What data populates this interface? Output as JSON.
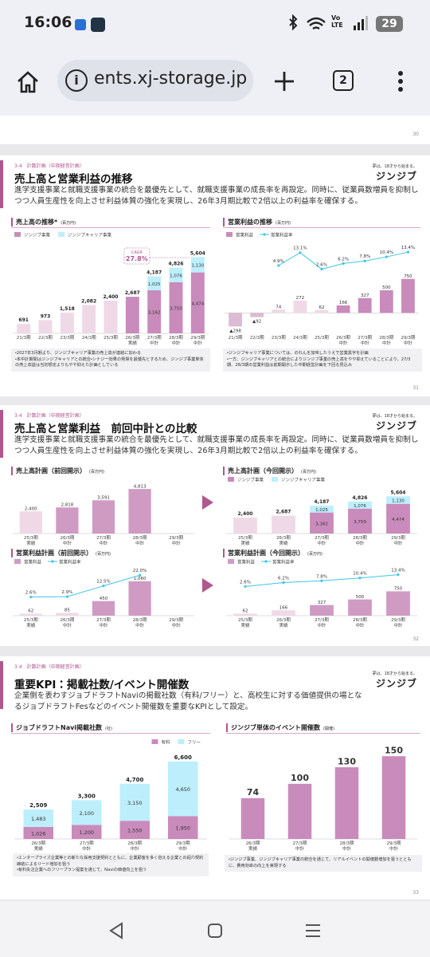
{
  "status_bar": {
    "time": "16:06",
    "battery": "29",
    "network": "Vo LTE"
  },
  "browser": {
    "url": "ents.xj-storage.jp",
    "tabs": "2"
  },
  "slides": [
    {
      "page": "30"
    },
    {
      "tag": "3-4　計数計画（中期経営計画）",
      "title": "売上高と営業利益の推移",
      "body": "進学支援事業と就職支援事業の統合を最優先として、就職支援事業の成長率を再設定。同時に、従業員数増員を抑制しつつ人員生産性を向上させ利益体質の強化を実現し、26年3月期比較で2倍以上の利益率を確保する。",
      "logo_tagline": "夢は、18才から始まる。",
      "logo": "ジンジブ",
      "notes_left": [
        "・2027年3月期より、ジンジブキャリア事業の売上高が連結に加わる",
        "・本中計期間はジンジブキャリアとの統合・シナジー効果の発揮を最優先とするため、ジンジブ事業単体の売上収益は当初想定よりもやや抑えた計画としている"
      ],
      "notes_right": [
        "・ジンジブキャリア事業については、のれんを加味したうえで営業黒字を計画",
        "・一方、ジンジブキャリアとの統合によりジンジブ事業の売上高をやや抑えていることにより、27/3期、28/3期の営業利益は前期開示した中期経営計画を下回る見込み"
      ],
      "page": "31"
    },
    {
      "tag": "3-4　計数計画（中期経営計画）",
      "title": "売上高と営業利益　前回中計との比較",
      "body": "進学支援事業と就職支援事業の統合を最優先として、就職支援事業の成長率を再設定。同時に、従業員数増員を抑制しつつ人員生産性を向上させ利益体質の強化を実現し、26年3月期比較で2倍以上の利益率を確保する。",
      "logo_tagline": "夢は、18才から始まる。",
      "logo": "ジンジブ",
      "page": "32"
    },
    {
      "tag": "3-4　計数計画（中期経営計画）",
      "title": "重要KPI：掲載社数/イベント開催数",
      "body": "企業側を表わすジョブドラフトNaviの掲載社数（有料/フリー）と、高校生に対する価値提供の場となるジョブドラフトFesなどのイベント開催数を重要なKPIとして設定。",
      "logo_tagline": "夢は、18才から始まる。",
      "logo": "ジンジブ",
      "notes_left": [
        "・エンタープライズ企業等との新たな採用支援契約とともに、企業顧客を多く抱える企業との紹介契約締結によるリード増加を狙う",
        "・有料失注企業へのフリープラン提案を通じて、Naviの価値向上を狙う"
      ],
      "notes_right": [
        "・ジンジブ事業、ジンジブキャリア事業の統合を通じて、リアルイベントの開催数増加を狙うとともに、費用効率の向上を実現する"
      ],
      "page": "33"
    }
  ],
  "chart_data": [
    {
      "type": "bar",
      "title": "売上高の推移*",
      "unit": "(百万円)",
      "legend": "top-left",
      "categories": [
        "21/3期",
        "22/3期",
        "23/3期",
        "24/3期",
        "25/3期",
        "26/3期 実績",
        "27/3期 中計",
        "28/3期 中計",
        "29/3期 中計"
      ],
      "series": [
        {
          "name": "ジンジブ事業",
          "color": "#c98bbb",
          "colors": [
            "#efd9e7",
            "#efd9e7",
            "#efd9e7",
            "#efd9e7",
            "#efd9e7",
            "#c98bbb",
            "#c98bbb",
            "#c98bbb",
            "#c98bbb"
          ],
          "values": [
            691,
            973,
            1518,
            2082,
            2400,
            2687,
            3162,
            3750,
            4474
          ],
          "value_labels": [
            null,
            null,
            null,
            null,
            null,
            null,
            "3,162",
            "3,750",
            "4,474"
          ]
        },
        {
          "name": "ジンジブキャリア事業",
          "color": "#bdeefc",
          "values": [
            null,
            null,
            null,
            null,
            null,
            null,
            1025,
            1076,
            1130
          ],
          "value_labels": [
            null,
            null,
            null,
            null,
            null,
            null,
            "1,025",
            "1,076",
            "1,130"
          ]
        }
      ],
      "totals": [
        691,
        973,
        1518,
        2082,
        2400,
        2687,
        4187,
        4826,
        5604
      ],
      "total_labels": [
        "691",
        "973",
        "1,518",
        "2,082",
        "2,400",
        "2,687",
        "4,187",
        "4,826",
        "5,604"
      ],
      "annotation": {
        "label": "CAGR",
        "value_label": "27.8%"
      },
      "ylim": [
        0,
        6500
      ]
    },
    {
      "type": "bar_line",
      "title": "営業利益の推移",
      "unit": "(百万円)",
      "legend": "top-left",
      "categories": [
        "21/3期",
        "22/3期",
        "23/3期",
        "24/3期",
        "25/3期",
        "26/3期 中計",
        "27/3期 中計",
        "28/3期 中計",
        "29/3期 中計"
      ],
      "series": [
        {
          "name": "営業利益",
          "color": "#c98bbb",
          "colors": [
            "#dcbcd2",
            "#dcbcd2",
            "#efd9e7",
            "#efd9e7",
            "#efd9e7",
            "#c98bbb",
            "#c98bbb",
            "#c98bbb",
            "#c98bbb"
          ],
          "values": [
            -298,
            -92,
            74,
            272,
            62,
            166,
            327,
            500,
            750
          ],
          "value_labels": [
            "▲298",
            "▲92",
            "74",
            "272",
            "62",
            "166",
            "327",
            "500",
            "750"
          ]
        },
        {
          "name": "営業利益率",
          "type": "line",
          "axis": "y2",
          "color": "#3ec6e8",
          "values": [
            null,
            null,
            4.9,
            13.1,
            2.6,
            6.2,
            7.8,
            10.4,
            13.4
          ],
          "value_labels": [
            null,
            null,
            "4.9%",
            "13.1%",
            "2.6%",
            "6.2%",
            "7.8%",
            "10.4%",
            "13.4%"
          ]
        }
      ],
      "ylim": [
        -450,
        1500
      ],
      "y2lim": [
        -38,
        18
      ]
    },
    {
      "type": "bar",
      "title": "売上高計画（前回開示）",
      "unit": "(百万円)",
      "categories": [
        "25/3期 実績",
        "26/3期 中計",
        "27/3期 中計",
        "28/3期 中計",
        "29/3期 中計"
      ],
      "series": [
        {
          "color": "#cf9bc3",
          "colors": [
            "#efd9e7",
            "#cf9bc3",
            "#cf9bc3",
            "#cf9bc3",
            "#cf9bc3"
          ],
          "values": [
            2400,
            2818,
            3591,
            4813,
            null
          ],
          "value_labels": [
            "2,400",
            "2,818",
            "3,591",
            "4,813",
            null
          ]
        }
      ],
      "ylim": [
        0,
        5600
      ]
    },
    {
      "type": "bar",
      "title": "売上高計画（今回開示）",
      "unit": "(百万円)",
      "legend": "top-left",
      "categories": [
        "25/3期 実績",
        "26/3期 実績",
        "27/3期 中計",
        "28/3期 中計",
        "29/3期 中計"
      ],
      "series": [
        {
          "name": "ジンジブ事業",
          "color": "#c98bbb",
          "colors": [
            "#efd9e7",
            "#efd9e7",
            "#c98bbb",
            "#c98bbb",
            "#c98bbb"
          ],
          "values": [
            2400,
            2687,
            3162,
            3750,
            4474
          ],
          "value_labels": [
            null,
            null,
            "3,162",
            "3,750",
            "4,474"
          ]
        },
        {
          "name": "ジンジブキャリア事業",
          "color": "#bdeefc",
          "values": [
            null,
            null,
            1025,
            1076,
            1130
          ],
          "value_labels": [
            null,
            null,
            "1,025",
            "1,076",
            "1,130"
          ]
        }
      ],
      "totals": [
        2400,
        2687,
        4187,
        4826,
        5604
      ],
      "total_labels": [
        "2,400",
        "2,687",
        "4,187",
        "4,826",
        "5,604"
      ],
      "ylim": [
        0,
        6600
      ]
    },
    {
      "type": "bar_line",
      "title": "営業利益計画（前回開示）",
      "unit": "(百万円)",
      "legend": "top-left",
      "categories": [
        "25/3期 実績",
        "26/3期 中計",
        "27/3期 中計",
        "28/3期 中計",
        "29/3期 中計"
      ],
      "series": [
        {
          "name": "営業利益",
          "color": "#cf9bc3",
          "colors": [
            "#efd9e7",
            "#efd9e7",
            "#cf9bc3",
            "#cf9bc3",
            "#cf9bc3"
          ],
          "values": [
            62,
            85,
            450,
            1060,
            null
          ],
          "value_labels": [
            "62",
            "85",
            "450",
            "1,060",
            null
          ]
        },
        {
          "name": "営業利益率",
          "type": "line",
          "axis": "y2",
          "color": "#3ec6e8",
          "values": [
            2.6,
            2.9,
            12.5,
            22.0,
            null
          ],
          "value_labels": [
            "2.6%",
            "2.9%",
            "12.5%",
            "22.0%",
            null
          ]
        }
      ],
      "ylim": [
        0,
        1350
      ],
      "y2lim": [
        -14,
        25
      ]
    },
    {
      "type": "bar_line",
      "title": "営業利益計画（今回開示）",
      "unit": "(百万円)",
      "legend": "top-left",
      "categories": [
        "25/3期 実績",
        "26/3期 実績",
        "27/3期 中計",
        "28/3期 中計",
        "29/3期 中計"
      ],
      "series": [
        {
          "name": "営業利益",
          "color": "#cf9bc3",
          "colors": [
            "#efd9e7",
            "#efd9e7",
            "#cf9bc3",
            "#cf9bc3",
            "#cf9bc3"
          ],
          "values": [
            62,
            166,
            327,
            500,
            750
          ],
          "value_labels": [
            "62",
            "166",
            "327",
            "500",
            "750"
          ]
        },
        {
          "name": "営業利益率",
          "type": "line",
          "axis": "y2",
          "color": "#3ec6e8",
          "values": [
            2.6,
            6.2,
            7.8,
            10.4,
            13.4
          ],
          "value_labels": [
            "2.6%",
            "6.2%",
            "7.8%",
            "10.4%",
            "13.4%"
          ]
        }
      ],
      "ylim": [
        0,
        1350
      ],
      "y2lim": [
        -24,
        16
      ]
    },
    {
      "type": "bar",
      "title": "ジョブドラフトNavi掲載社数",
      "unit": "(社)",
      "legend": "top-right",
      "categories": [
        "26/3期 実績",
        "27/3期 中計",
        "28/3期 中計",
        "29/3期 中計"
      ],
      "series": [
        {
          "name": "有料",
          "color": "#c98bbb",
          "values": [
            1026,
            1200,
            1550,
            1950
          ],
          "value_labels": [
            "1,026",
            "1,200",
            "1,550",
            "1,950"
          ]
        },
        {
          "name": "フリー",
          "color": "#bdeefc",
          "values": [
            1483,
            2100,
            3150,
            4650
          ],
          "value_labels": [
            "1,483",
            "2,100",
            "3,150",
            "4,650"
          ]
        }
      ],
      "totals": [
        2509,
        3300,
        4700,
        6600
      ],
      "total_labels": [
        "2,509",
        "3,300",
        "4,700",
        "6,600"
      ],
      "ylim": [
        0,
        7400
      ]
    },
    {
      "type": "bar",
      "title": "ジンジブ単体のイベント開催数",
      "unit": "(開催)",
      "categories": [
        "26/3期 実績",
        "27/3期 中計",
        "28/3期 中計",
        "29/3期 中計"
      ],
      "series": [
        {
          "color": "#c98bbb",
          "values": [
            74,
            100,
            130,
            150
          ],
          "value_labels": [
            "74",
            "100",
            "130",
            "150"
          ]
        }
      ],
      "ylim": [
        0,
        172
      ]
    }
  ]
}
